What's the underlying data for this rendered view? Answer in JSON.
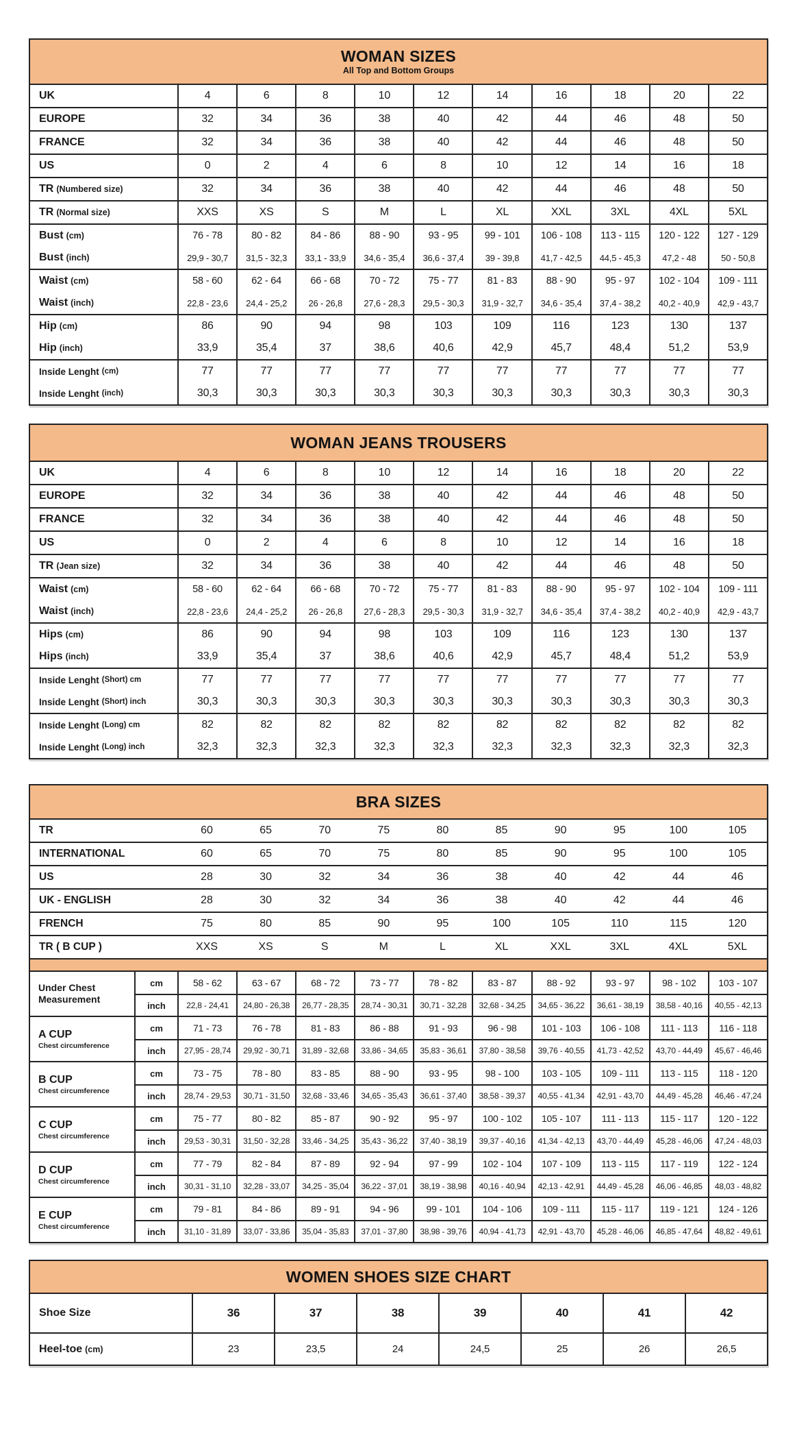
{
  "accent_color": "#f4ba8a",
  "border_color": "#232323",
  "tables": [
    {
      "id": "woman-sizes",
      "title": "WOMAN SIZES",
      "subtitle": "All Top and Bottom Groups",
      "groups": [
        {
          "rows": [
            {
              "label": "UK",
              "values": [
                "4",
                "6",
                "8",
                "10",
                "12",
                "14",
                "16",
                "18",
                "20",
                "22"
              ]
            }
          ]
        },
        {
          "rows": [
            {
              "label": "EUROPE",
              "values": [
                "32",
                "34",
                "36",
                "38",
                "40",
                "42",
                "44",
                "46",
                "48",
                "50"
              ]
            }
          ]
        },
        {
          "rows": [
            {
              "label": "FRANCE",
              "values": [
                "32",
                "34",
                "36",
                "38",
                "40",
                "42",
                "44",
                "46",
                "48",
                "50"
              ]
            }
          ]
        },
        {
          "rows": [
            {
              "label": "US",
              "values": [
                "0",
                "2",
                "4",
                "6",
                "8",
                "10",
                "12",
                "14",
                "16",
                "18"
              ]
            }
          ]
        },
        {
          "rows": [
            {
              "label": "TR",
              "label_sub": "(Numbered size)",
              "values": [
                "32",
                "34",
                "36",
                "38",
                "40",
                "42",
                "44",
                "46",
                "48",
                "50"
              ]
            }
          ]
        },
        {
          "rows": [
            {
              "label": "TR",
              "label_sub": "(Normal size)",
              "values": [
                "XXS",
                "XS",
                "S",
                "M",
                "L",
                "XL",
                "XXL",
                "3XL",
                "4XL",
                "5XL"
              ]
            }
          ]
        },
        {
          "rows": [
            {
              "label": "Bust",
              "label_sub": "(cm)",
              "values": [
                "76 - 78",
                "80 - 82",
                "84 - 86",
                "88 - 90",
                "93 - 95",
                "99 - 101",
                "106 - 108",
                "113 - 115",
                "120 - 122",
                "127 - 129"
              ]
            },
            {
              "label": "Bust",
              "label_sub": "(inch)",
              "values": [
                "29,9 - 30,7",
                "31,5 - 32,3",
                "33,1 - 33,9",
                "34,6 - 35,4",
                "36,6 - 37,4",
                "39 - 39,8",
                "41,7 - 42,5",
                "44,5 - 45,3",
                "47,2 - 48",
                "50 - 50,8"
              ]
            }
          ]
        },
        {
          "rows": [
            {
              "label": "Waist",
              "label_sub": "(cm)",
              "values": [
                "58 - 60",
                "62 - 64",
                "66 - 68",
                "70 - 72",
                "75 - 77",
                "81 - 83",
                "88 - 90",
                "95 - 97",
                "102 - 104",
                "109 - 111"
              ]
            },
            {
              "label": "Waist",
              "label_sub": "(inch)",
              "values": [
                "22,8 - 23,6",
                "24,4 - 25,2",
                "26 - 26,8",
                "27,6 - 28,3",
                "29,5 - 30,3",
                "31,9 - 32,7",
                "34,6 - 35,4",
                "37,4 - 38,2",
                "40,2 - 40,9",
                "42,9 - 43,7"
              ]
            }
          ]
        },
        {
          "rows": [
            {
              "label": "Hip",
              "label_sub": "(cm)",
              "values": [
                "86",
                "90",
                "94",
                "98",
                "103",
                "109",
                "116",
                "123",
                "130",
                "137"
              ]
            },
            {
              "label": "Hip",
              "label_sub": "(inch)",
              "values": [
                "33,9",
                "35,4",
                "37",
                "38,6",
                "40,6",
                "42,9",
                "45,7",
                "48,4",
                "51,2",
                "53,9"
              ]
            }
          ]
        },
        {
          "rows": [
            {
              "label": "Inside Lenght",
              "label_sub": "(cm)",
              "values": [
                "77",
                "77",
                "77",
                "77",
                "77",
                "77",
                "77",
                "77",
                "77",
                "77"
              ]
            },
            {
              "label": "Inside Lenght",
              "label_sub": "(inch)",
              "values": [
                "30,3",
                "30,3",
                "30,3",
                "30,3",
                "30,3",
                "30,3",
                "30,3",
                "30,3",
                "30,3",
                "30,3"
              ]
            }
          ]
        }
      ]
    },
    {
      "id": "jeans",
      "title": "WOMAN JEANS TROUSERS",
      "groups": [
        {
          "rows": [
            {
              "label": "UK",
              "values": [
                "4",
                "6",
                "8",
                "10",
                "12",
                "14",
                "16",
                "18",
                "20",
                "22"
              ]
            }
          ]
        },
        {
          "rows": [
            {
              "label": "EUROPE",
              "values": [
                "32",
                "34",
                "36",
                "38",
                "40",
                "42",
                "44",
                "46",
                "48",
                "50"
              ]
            }
          ]
        },
        {
          "rows": [
            {
              "label": "FRANCE",
              "values": [
                "32",
                "34",
                "36",
                "38",
                "40",
                "42",
                "44",
                "46",
                "48",
                "50"
              ]
            }
          ]
        },
        {
          "rows": [
            {
              "label": "US",
              "values": [
                "0",
                "2",
                "4",
                "6",
                "8",
                "10",
                "12",
                "14",
                "16",
                "18"
              ]
            }
          ]
        },
        {
          "rows": [
            {
              "label": "TR",
              "label_sub": "(Jean size)",
              "values": [
                "32",
                "34",
                "36",
                "38",
                "40",
                "42",
                "44",
                "46",
                "48",
                "50"
              ]
            }
          ]
        },
        {
          "rows": [
            {
              "label": "Waist",
              "label_sub": "(cm)",
              "values": [
                "58 - 60",
                "62 - 64",
                "66 - 68",
                "70 - 72",
                "75 - 77",
                "81 - 83",
                "88 - 90",
                "95 - 97",
                "102 - 104",
                "109 - 111"
              ]
            },
            {
              "label": "Waist",
              "label_sub": "(inch)",
              "values": [
                "22,8 - 23,6",
                "24,4 - 25,2",
                "26 - 26,8",
                "27,6 - 28,3",
                "29,5 - 30,3",
                "31,9 - 32,7",
                "34,6 - 35,4",
                "37,4 - 38,2",
                "40,2 - 40,9",
                "42,9 - 43,7"
              ]
            }
          ]
        },
        {
          "rows": [
            {
              "label": "Hips",
              "label_sub": "(cm)",
              "values": [
                "86",
                "90",
                "94",
                "98",
                "103",
                "109",
                "116",
                "123",
                "130",
                "137"
              ]
            },
            {
              "label": "Hips",
              "label_sub": "(inch)",
              "values": [
                "33,9",
                "35,4",
                "37",
                "38,6",
                "40,6",
                "42,9",
                "45,7",
                "48,4",
                "51,2",
                "53,9"
              ]
            }
          ]
        },
        {
          "rows": [
            {
              "label": "Inside Lenght",
              "label_sub": "(Short) cm",
              "values": [
                "77",
                "77",
                "77",
                "77",
                "77",
                "77",
                "77",
                "77",
                "77",
                "77"
              ]
            },
            {
              "label": "Inside Lenght",
              "label_sub": "(Short) inch",
              "values": [
                "30,3",
                "30,3",
                "30,3",
                "30,3",
                "30,3",
                "30,3",
                "30,3",
                "30,3",
                "30,3",
                "30,3"
              ]
            }
          ]
        },
        {
          "rows": [
            {
              "label": "Inside Lenght",
              "label_sub": "(Long) cm",
              "values": [
                "82",
                "82",
                "82",
                "82",
                "82",
                "82",
                "82",
                "82",
                "82",
                "82"
              ]
            },
            {
              "label": "Inside Lenght",
              "label_sub": "(Long) inch",
              "values": [
                "32,3",
                "32,3",
                "32,3",
                "32,3",
                "32,3",
                "32,3",
                "32,3",
                "32,3",
                "32,3",
                "32,3"
              ]
            }
          ]
        }
      ]
    },
    {
      "id": "bra",
      "title": "BRA SIZES",
      "top_rows": [
        {
          "label": "TR",
          "values": [
            "60",
            "65",
            "70",
            "75",
            "80",
            "85",
            "90",
            "95",
            "100",
            "105"
          ]
        },
        {
          "label": "INTERNATIONAL",
          "values": [
            "60",
            "65",
            "70",
            "75",
            "80",
            "85",
            "90",
            "95",
            "100",
            "105"
          ]
        },
        {
          "label": "US",
          "values": [
            "28",
            "30",
            "32",
            "34",
            "36",
            "38",
            "40",
            "42",
            "44",
            "46"
          ]
        },
        {
          "label": "UK - ENGLISH",
          "values": [
            "28",
            "30",
            "32",
            "34",
            "36",
            "38",
            "40",
            "42",
            "44",
            "46"
          ]
        },
        {
          "label": "FRENCH",
          "values": [
            "75",
            "80",
            "85",
            "90",
            "95",
            "100",
            "105",
            "110",
            "115",
            "120"
          ]
        },
        {
          "label": "TR ( B CUP )",
          "values": [
            "XXS",
            "XS",
            "S",
            "M",
            "L",
            "XL",
            "XXL",
            "3XL",
            "4XL",
            "5XL"
          ]
        }
      ],
      "cup_groups": [
        {
          "label": "Under Chest Measurement",
          "rows": [
            {
              "unit": "cm",
              "values": [
                "58 - 62",
                "63 - 67",
                "68 - 72",
                "73 - 77",
                "78 - 82",
                "83 - 87",
                "88 - 92",
                "93 - 97",
                "98 - 102",
                "103 - 107"
              ]
            },
            {
              "unit": "inch",
              "values": [
                "22,8 - 24,41",
                "24,80 - 26,38",
                "26,77 - 28,35",
                "28,74 - 30,31",
                "30,71 - 32,28",
                "32,68 - 34,25",
                "34,65 - 36,22",
                "36,61 - 38,19",
                "38,58 - 40,16",
                "40,55 - 42,13"
              ]
            }
          ]
        },
        {
          "label": "A CUP",
          "sublabel": "Chest circumference",
          "rows": [
            {
              "unit": "cm",
              "values": [
                "71 - 73",
                "76 - 78",
                "81 - 83",
                "86 - 88",
                "91 - 93",
                "96 - 98",
                "101 - 103",
                "106 - 108",
                "111 - 113",
                "116 - 118"
              ]
            },
            {
              "unit": "inch",
              "values": [
                "27,95 - 28,74",
                "29,92 - 30,71",
                "31,89 - 32,68",
                "33,86 - 34,65",
                "35,83 - 36,61",
                "37,80 - 38,58",
                "39,76 - 40,55",
                "41,73 - 42,52",
                "43,70 - 44,49",
                "45,67 - 46,46"
              ]
            }
          ]
        },
        {
          "label": "B CUP",
          "sublabel": "Chest circumference",
          "rows": [
            {
              "unit": "cm",
              "values": [
                "73 - 75",
                "78 - 80",
                "83 - 85",
                "88 - 90",
                "93 - 95",
                "98 - 100",
                "103 - 105",
                "109 - 111",
                "113 - 115",
                "118 - 120"
              ]
            },
            {
              "unit": "inch",
              "values": [
                "28,74 - 29,53",
                "30,71 - 31,50",
                "32,68 - 33,46",
                "34,65 - 35,43",
                "36,61 - 37,40",
                "38,58 - 39,37",
                "40,55 - 41,34",
                "42,91 - 43,70",
                "44,49 - 45,28",
                "46,46 - 47,24"
              ]
            }
          ]
        },
        {
          "label": "C CUP",
          "sublabel": "Chest circumference",
          "rows": [
            {
              "unit": "cm",
              "values": [
                "75 - 77",
                "80 - 82",
                "85 - 87",
                "90 - 92",
                "95 - 97",
                "100 - 102",
                "105 - 107",
                "111 - 113",
                "115 - 117",
                "120 - 122"
              ]
            },
            {
              "unit": "inch",
              "values": [
                "29,53 - 30,31",
                "31,50 - 32,28",
                "33,46 - 34,25",
                "35,43 - 36,22",
                "37,40 - 38,19",
                "39,37 - 40,16",
                "41,34 - 42,13",
                "43,70 - 44,49",
                "45,28 - 46,06",
                "47,24 - 48,03"
              ]
            }
          ]
        },
        {
          "label": "D CUP",
          "sublabel": "Chest circumference",
          "rows": [
            {
              "unit": "cm",
              "values": [
                "77 - 79",
                "82 - 84",
                "87 - 89",
                "92 - 94",
                "97 - 99",
                "102 - 104",
                "107 - 109",
                "113 - 115",
                "117 - 119",
                "122 - 124"
              ]
            },
            {
              "unit": "inch",
              "values": [
                "30,31 - 31,10",
                "32,28 - 33,07",
                "34,25 - 35,04",
                "36,22 - 37,01",
                "38,19 - 38,98",
                "40,16 - 40,94",
                "42,13 - 42,91",
                "44,49 - 45,28",
                "46,06 - 46,85",
                "48,03 - 48,82"
              ]
            }
          ]
        },
        {
          "label": "E CUP",
          "sublabel": "Chest circumference",
          "rows": [
            {
              "unit": "cm",
              "values": [
                "79 - 81",
                "84 - 86",
                "89 - 91",
                "94 - 96",
                "99 - 101",
                "104 - 106",
                "109 - 111",
                "115 - 117",
                "119 - 121",
                "124 - 126"
              ]
            },
            {
              "unit": "inch",
              "values": [
                "31,10 - 31,89",
                "33,07 - 33,86",
                "35,04 - 35,83",
                "37,01 - 37,80",
                "38,98 - 39,76",
                "40,94 - 41,73",
                "42,91 - 43,70",
                "45,28 - 46,06",
                "46,85 - 47,64",
                "48,82 - 49,61"
              ]
            }
          ]
        }
      ]
    },
    {
      "id": "shoes",
      "title": "WOMEN SHOES SIZE CHART",
      "groups": [
        {
          "rows": [
            {
              "label": "Shoe Size",
              "values": [
                "36",
                "37",
                "38",
                "39",
                "40",
                "41",
                "42"
              ]
            }
          ]
        },
        {
          "rows": [
            {
              "label": "Heel-toe",
              "label_sub": "(cm)",
              "values": [
                "23",
                "23,5",
                "24",
                "24,5",
                "25",
                "26",
                "26,5"
              ]
            }
          ]
        }
      ]
    }
  ]
}
